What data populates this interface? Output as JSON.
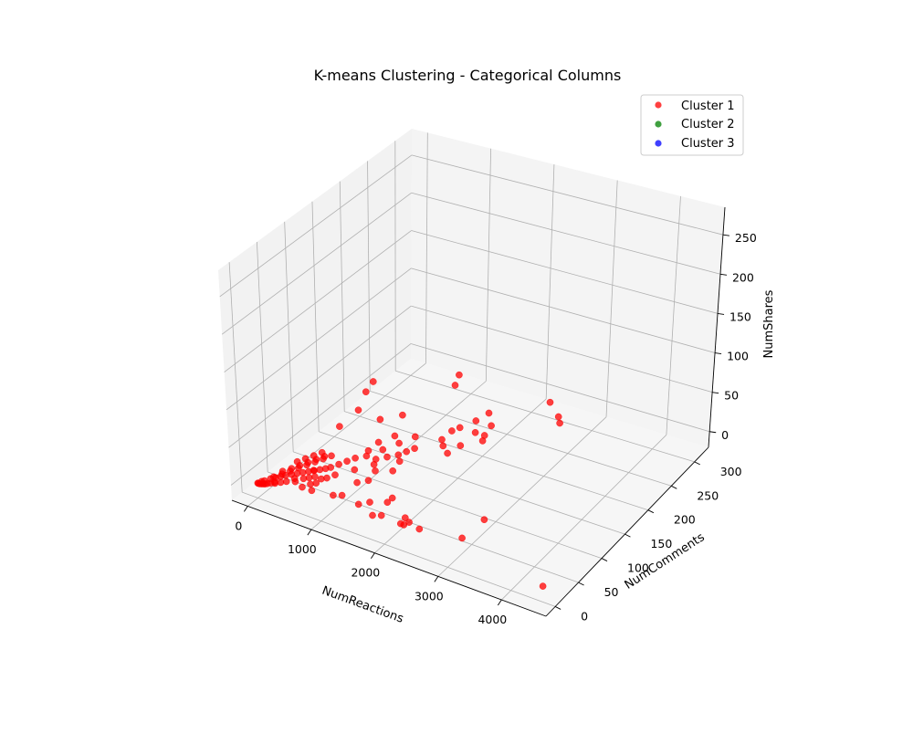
{
  "chart_data": {
    "type": "scatter",
    "projection": "3d",
    "title": "K-means Clustering - Categorical Columns",
    "xlabel": "NumReactions",
    "ylabel": "NumComments",
    "zlabel": "NumShares",
    "xlim": [
      -250,
      4700
    ],
    "ylim": [
      -20,
      330
    ],
    "zlim": [
      -20,
      285
    ],
    "xticks": [
      0,
      1000,
      2000,
      3000,
      4000
    ],
    "yticks": [
      0,
      50,
      100,
      150,
      200,
      250,
      300
    ],
    "zticks": [
      0,
      50,
      100,
      150,
      200,
      250
    ],
    "grid": true,
    "legend_position": "top-right",
    "series": [
      {
        "name": "Cluster 1",
        "color": "#ff0000",
        "points": [
          [
            4500,
            0,
            0
          ],
          [
            3500,
            10,
            50
          ],
          [
            1800,
            10,
            180
          ],
          [
            1700,
            8,
            165
          ],
          [
            1600,
            5,
            140
          ],
          [
            1300,
            5,
            110
          ],
          [
            3000,
            30,
            0
          ],
          [
            2400,
            20,
            0
          ],
          [
            2200,
            25,
            0
          ],
          [
            2100,
            30,
            0
          ],
          [
            2250,
            8,
            8
          ],
          [
            2200,
            8,
            8
          ],
          [
            1800,
            20,
            0
          ],
          [
            1700,
            15,
            0
          ],
          [
            1500,
            35,
            0
          ],
          [
            1400,
            25,
            0
          ],
          [
            1100,
            30,
            0
          ],
          [
            1700,
            55,
            0
          ],
          [
            1700,
            45,
            0
          ],
          [
            1000,
            25,
            0
          ],
          [
            700,
            20,
            0
          ],
          [
            650,
            35,
            0
          ],
          [
            550,
            45,
            0
          ],
          [
            450,
            55,
            0
          ],
          [
            900,
            80,
            0
          ],
          [
            750,
            60,
            0
          ],
          [
            1100,
            60,
            0
          ],
          [
            1200,
            70,
            0
          ],
          [
            1300,
            120,
            0
          ],
          [
            1500,
            180,
            0
          ],
          [
            1600,
            170,
            0
          ],
          [
            1500,
            200,
            0
          ],
          [
            1300,
            150,
            0
          ],
          [
            1250,
            140,
            0
          ],
          [
            1200,
            130,
            0
          ],
          [
            1100,
            120,
            0
          ],
          [
            1000,
            110,
            0
          ],
          [
            1050,
            100,
            0
          ],
          [
            1150,
            90,
            0
          ],
          [
            1350,
            100,
            0
          ],
          [
            2000,
            200,
            0
          ],
          [
            1900,
            230,
            0
          ],
          [
            1800,
            210,
            0
          ],
          [
            1950,
            210,
            0
          ],
          [
            1550,
            210,
            0
          ],
          [
            1650,
            230,
            0
          ],
          [
            1700,
            250,
            0
          ],
          [
            2300,
            300,
            0
          ],
          [
            2600,
            280,
            0
          ],
          [
            2700,
            270,
            0
          ],
          [
            1800,
            180,
            0
          ],
          [
            1750,
            160,
            0
          ],
          [
            700,
            200,
            0
          ],
          [
            900,
            280,
            0
          ],
          [
            800,
            120,
            0
          ],
          [
            500,
            180,
            0
          ],
          [
            800,
            300,
            0
          ],
          [
            300,
            20,
            0
          ],
          [
            250,
            15,
            0
          ],
          [
            200,
            10,
            0
          ],
          [
            180,
            12,
            0
          ],
          [
            150,
            8,
            0
          ],
          [
            120,
            5,
            0
          ],
          [
            100,
            3,
            0
          ],
          [
            80,
            2,
            0
          ],
          [
            60,
            1,
            0
          ],
          [
            40,
            0,
            0
          ],
          [
            20,
            0,
            0
          ],
          [
            10,
            0,
            0
          ],
          [
            30,
            5,
            0
          ],
          [
            50,
            8,
            0
          ],
          [
            90,
            15,
            0
          ],
          [
            130,
            20,
            0
          ],
          [
            170,
            25,
            0
          ],
          [
            210,
            30,
            0
          ],
          [
            260,
            35,
            0
          ],
          [
            310,
            40,
            0
          ],
          [
            360,
            45,
            0
          ],
          [
            410,
            50,
            0
          ],
          [
            460,
            55,
            0
          ],
          [
            510,
            60,
            0
          ],
          [
            560,
            65,
            0
          ],
          [
            600,
            70,
            0
          ],
          [
            650,
            80,
            0
          ],
          [
            700,
            90,
            0
          ],
          [
            750,
            100,
            0
          ],
          [
            350,
            30,
            0
          ],
          [
            400,
            25,
            0
          ],
          [
            450,
            35,
            0
          ],
          [
            500,
            40,
            0
          ],
          [
            550,
            20,
            0
          ],
          [
            600,
            30,
            0
          ],
          [
            650,
            45,
            0
          ],
          [
            700,
            50,
            0
          ],
          [
            200,
            40,
            0
          ],
          [
            250,
            50,
            0
          ],
          [
            300,
            60,
            0
          ],
          [
            350,
            70,
            0
          ],
          [
            400,
            80,
            0
          ],
          [
            450,
            90,
            0
          ],
          [
            150,
            30,
            0
          ],
          [
            100,
            20,
            0
          ],
          [
            120,
            35,
            0
          ],
          [
            180,
            45,
            0
          ],
          [
            230,
            55,
            0
          ],
          [
            280,
            65,
            0
          ],
          [
            330,
            75,
            0
          ],
          [
            380,
            85,
            0
          ],
          [
            150,
            60,
            0
          ],
          [
            200,
            70,
            0
          ],
          [
            250,
            80,
            0
          ],
          [
            300,
            90,
            0
          ],
          [
            850,
            110,
            0
          ],
          [
            950,
            130,
            0
          ],
          [
            1050,
            150,
            0
          ],
          [
            1150,
            170,
            0
          ],
          [
            900,
            160,
            0
          ],
          [
            800,
            140,
            0
          ]
        ]
      },
      {
        "name": "Cluster 2",
        "color": "#008000",
        "points": []
      },
      {
        "name": "Cluster 3",
        "color": "#0000ff",
        "points": []
      }
    ]
  }
}
